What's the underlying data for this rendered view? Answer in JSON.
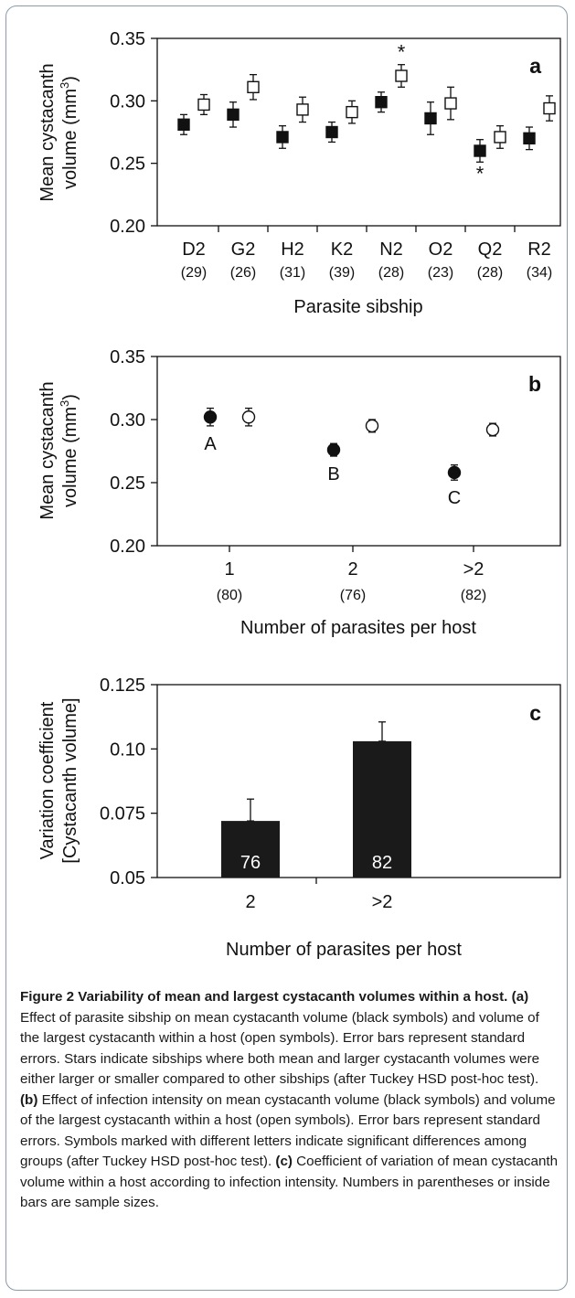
{
  "chart_data": [
    {
      "id": "a",
      "type": "scatter",
      "panel_letter": "a",
      "ylabel_line1": "Mean cystacanth",
      "ylabel_line2_pre": "volume (mm",
      "ylabel_line2_sup": "3",
      "ylabel_line2_post": ")",
      "xlabel": "Parasite sibship",
      "ylim": [
        0.2,
        0.35
      ],
      "yticks": [
        "0.35",
        "0.30",
        "0.25",
        "0.20"
      ],
      "ytick_values": [
        0.35,
        0.3,
        0.25,
        0.2
      ],
      "categories": [
        "D2",
        "G2",
        "H2",
        "K2",
        "N2",
        "O2",
        "Q2",
        "R2"
      ],
      "sample_sizes": [
        "(29)",
        "(26)",
        "(31)",
        "(39)",
        "(28)",
        "(23)",
        "(28)",
        "(34)"
      ],
      "series": [
        {
          "marker": "filled-square",
          "values": [
            0.281,
            0.289,
            0.271,
            0.275,
            0.299,
            0.286,
            0.26,
            0.27
          ],
          "errors": [
            0.008,
            0.01,
            0.009,
            0.008,
            0.008,
            0.013,
            0.009,
            0.009
          ]
        },
        {
          "marker": "open-square",
          "values": [
            0.297,
            0.311,
            0.293,
            0.291,
            0.32,
            0.298,
            0.271,
            0.294
          ],
          "errors": [
            0.008,
            0.01,
            0.01,
            0.009,
            0.009,
            0.013,
            0.009,
            0.01
          ]
        }
      ],
      "annotations": [
        {
          "text": "*",
          "category_index": 4,
          "position": "above-open"
        },
        {
          "text": "*",
          "category_index": 6,
          "position": "below-filled"
        }
      ]
    },
    {
      "id": "b",
      "type": "scatter",
      "panel_letter": "b",
      "ylabel_line1": "Mean cystacanth",
      "ylabel_line2_pre": "volume (mm",
      "ylabel_line2_sup": "3",
      "ylabel_line2_post": ")",
      "xlabel": "Number of parasites per host",
      "ylim": [
        0.2,
        0.35
      ],
      "yticks": [
        "0.35",
        "0.30",
        "0.25",
        "0.20"
      ],
      "ytick_values": [
        0.35,
        0.3,
        0.25,
        0.2
      ],
      "categories": [
        "1",
        "2",
        ">2"
      ],
      "sample_sizes": [
        "(80)",
        "(76)",
        "(82)"
      ],
      "series": [
        {
          "marker": "filled-circle",
          "values": [
            0.302,
            0.276,
            0.258
          ],
          "errors": [
            0.007,
            0.005,
            0.006
          ]
        },
        {
          "marker": "open-circle",
          "values": [
            0.302,
            0.295,
            0.292
          ],
          "errors": [
            0.007,
            0.005,
            0.005
          ]
        }
      ],
      "group_letters": [
        "A",
        "B",
        "C"
      ]
    },
    {
      "id": "c",
      "type": "bar",
      "panel_letter": "c",
      "ylabel_line1": "Variation coefficient",
      "ylabel_line2": "[Cystacanth volume]",
      "xlabel": "Number of parasites per host",
      "ylim": [
        0.05,
        0.125
      ],
      "yticks": [
        "0.125",
        "0.10",
        "0.075",
        "0.05"
      ],
      "ytick_values": [
        0.125,
        0.1,
        0.075,
        0.05
      ],
      "categories": [
        "2",
        ">2"
      ],
      "values": [
        0.072,
        0.103
      ],
      "errors": [
        0.0085,
        0.0075
      ],
      "bar_labels": [
        "76",
        "82"
      ],
      "bar_color": "#1a1a1a"
    }
  ],
  "caption": {
    "title": "Figure 2 Variability of mean and largest cystacanth volumes within a host.",
    "parts": [
      {
        "label": "(a)",
        "text": " Effect of parasite sibship on mean cystacanth volume (black symbols) and volume of the largest cystacanth within a host (open symbols). Error bars represent standard errors. Stars indicate sibships where both mean and larger cystacanth volumes were either larger or smaller compared to other sibships (after Tuckey HSD post-hoc test). "
      },
      {
        "label": "(b)",
        "text": " Effect of infection intensity on mean cystacanth volume (black symbols) and volume of the largest cystacanth within a host (open symbols). Error bars represent standard errors. Symbols marked with different letters indicate significant differences among groups (after Tuckey HSD post-hoc test). "
      },
      {
        "label": "(c)",
        "text": " Coefficient of variation of mean cystacanth volume within a host according to infection intensity. Numbers in parentheses or inside bars are sample sizes."
      }
    ]
  }
}
